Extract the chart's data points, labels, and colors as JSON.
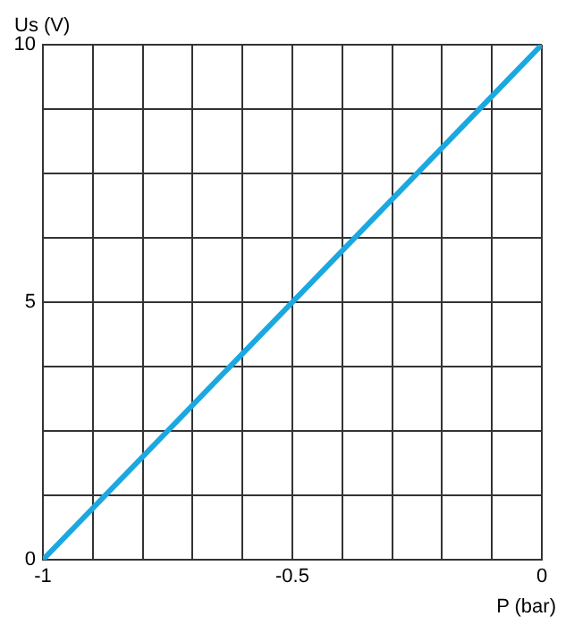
{
  "chart_data": {
    "type": "line",
    "xlabel": "P (bar)",
    "ylabel": "Us (V)",
    "x": [
      -1,
      0
    ],
    "series": [
      {
        "color": "#1ba8e0",
        "values": [
          0,
          10
        ]
      }
    ],
    "xlim": [
      -1,
      0
    ],
    "xticks": [
      -1,
      {
        "value": -0.9,
        "label": null
      },
      {
        "value": -0.8,
        "label": null
      },
      {
        "value": -0.7,
        "label": null
      },
      {
        "value": -0.6,
        "label": null
      },
      -0.5,
      {
        "value": -0.4,
        "label": null
      },
      {
        "value": -0.3,
        "label": null
      },
      {
        "value": -0.2,
        "label": null
      },
      {
        "value": -0.1,
        "label": null
      },
      0
    ],
    "ylim": [
      0,
      10
    ],
    "yticks": [
      0,
      {
        "value": 1.25,
        "label": null
      },
      {
        "value": 2.5,
        "label": null
      },
      {
        "value": 3.75,
        "label": null
      },
      5,
      {
        "value": 6.25,
        "label": null
      },
      {
        "value": 7.5,
        "label": null
      },
      {
        "value": 8.75,
        "label": null
      },
      10
    ],
    "grid": true,
    "legend": false,
    "marker": "none",
    "line_style": "solid"
  }
}
